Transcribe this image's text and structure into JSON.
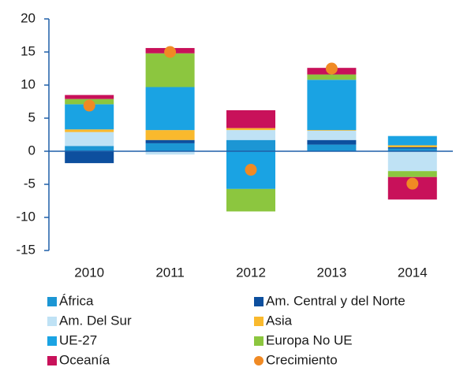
{
  "chart_data": {
    "type": "bar",
    "stacked": true,
    "categories": [
      "2010",
      "2011",
      "2012",
      "2013",
      "2014"
    ],
    "ylim": [
      -15,
      20
    ],
    "yticks": [
      -15,
      -10,
      -5,
      0,
      5,
      10,
      15,
      20
    ],
    "grid": false,
    "series": [
      {
        "name": "África",
        "color": "#1c96d4",
        "values": [
          0.8,
          1.2,
          1.7,
          1.0,
          0.4
        ]
      },
      {
        "name": "Am. Central y del Norte",
        "color": "#0d4f9e",
        "values": [
          -1.8,
          0.5,
          0,
          0.7,
          0.2
        ]
      },
      {
        "name": "Am. Del Sur",
        "color": "#bfe2f5",
        "values": [
          2.1,
          -0.5,
          1.5,
          1.4,
          -3.0
        ]
      },
      {
        "name": "Asia",
        "color": "#f9b92d",
        "values": [
          0.4,
          1.5,
          0.3,
          0.1,
          0.3
        ]
      },
      {
        "name": "UE-27",
        "color": "#1aa3e3",
        "values": [
          3.8,
          6.5,
          -5.7,
          7.6,
          1.4
        ]
      },
      {
        "name": "Europa No UE",
        "color": "#8cc63f",
        "values": [
          0.8,
          5.1,
          -3.4,
          0.8,
          -0.9
        ]
      },
      {
        "name": "Oceanía",
        "color": "#c8115a",
        "values": [
          0.6,
          0.8,
          2.7,
          1.0,
          -3.4
        ]
      },
      {
        "name": "Crecimiento",
        "color": "#f08a24",
        "type": "scatter",
        "values": [
          6.9,
          15.0,
          -2.8,
          12.5,
          -4.9
        ]
      }
    ]
  }
}
